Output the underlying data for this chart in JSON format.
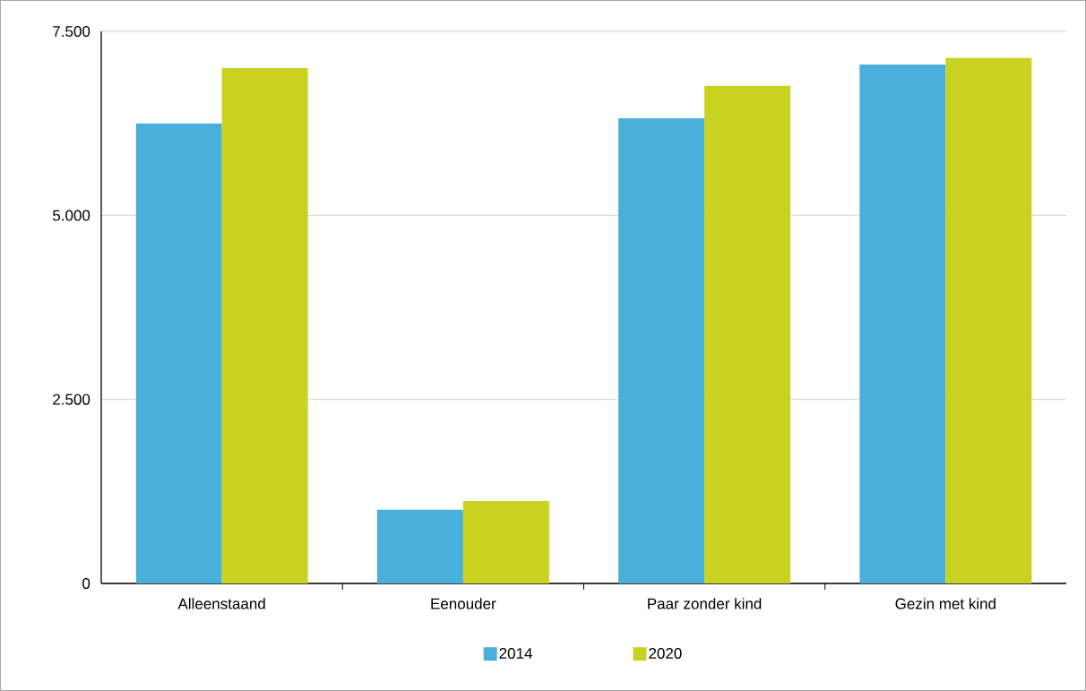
{
  "chart_data": {
    "type": "bar",
    "categories": [
      "Alleenstaand",
      "Eenouder",
      "Paar zonder kind",
      "Gezin met kind"
    ],
    "series": [
      {
        "name": "2014",
        "color": "#4bafdc",
        "values": [
          6250,
          1000,
          6320,
          7050
        ]
      },
      {
        "name": "2020",
        "color": "#c9d221",
        "values": [
          7000,
          1120,
          6760,
          7140
        ]
      }
    ],
    "ylim": [
      0,
      7500
    ],
    "yticks": [
      0,
      {
        "value": 2500,
        "label": "2.500"
      },
      {
        "value": 5000,
        "label": "5.000"
      },
      {
        "value": 7500,
        "label": "7.500"
      }
    ],
    "grid": "y",
    "legend": "bottom"
  }
}
